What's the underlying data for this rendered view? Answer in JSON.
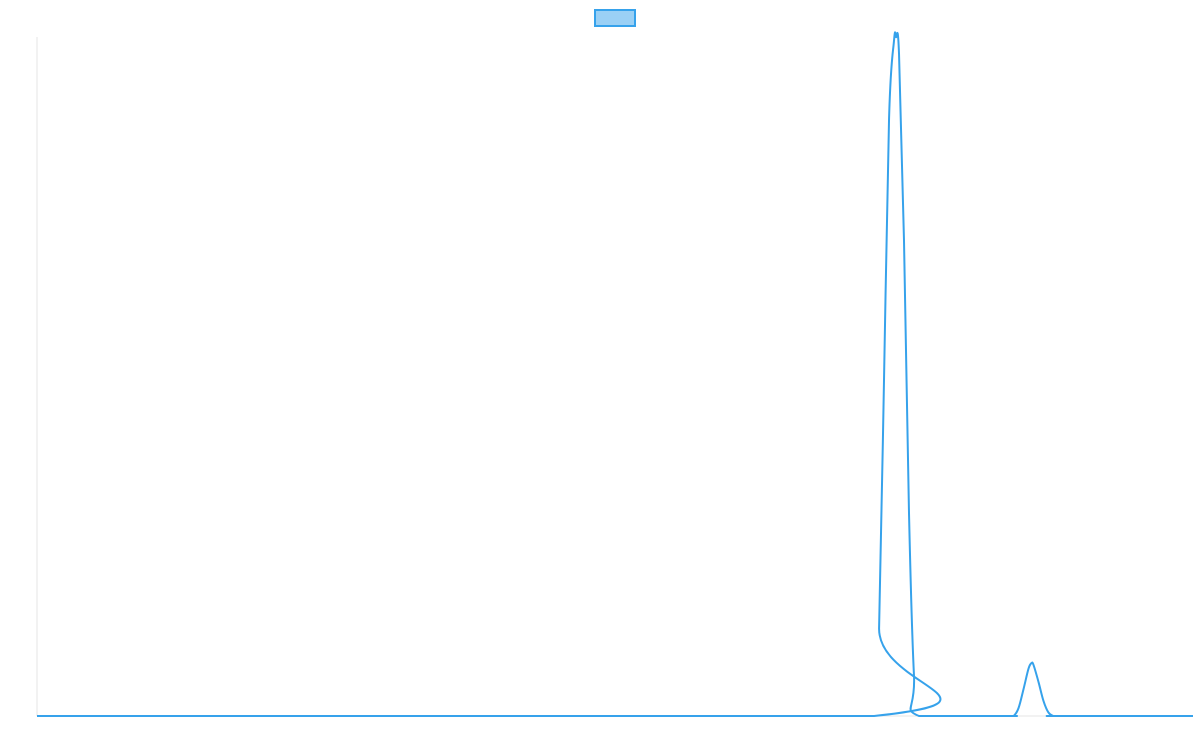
{
  "chart_data": {
    "type": "line",
    "title": "",
    "xlabel": "",
    "ylabel": "",
    "xlim": [
      0,
      1160
    ],
    "ylim": [
      0,
      1
    ],
    "grid": false,
    "legend": "top-center",
    "x": [
      0,
      840,
      845,
      850,
      855,
      860,
      862,
      865,
      870,
      875,
      880,
      885,
      975,
      980,
      985,
      990,
      995,
      998,
      1000,
      1005,
      1010,
      1015,
      1020,
      1025,
      1160
    ],
    "series": [
      {
        "name": "",
        "color": "#36a2eb",
        "fill": "#9ad0f5",
        "values": [
          0,
          0,
          0.13,
          0.5,
          0.88,
          0.995,
          1.0,
          0.975,
          0.7,
          0.3,
          0.06,
          0,
          0,
          0,
          0.012,
          0.04,
          0.07,
          0.078,
          0.075,
          0.05,
          0.022,
          0.005,
          0,
          0,
          0
        ]
      }
    ]
  }
}
